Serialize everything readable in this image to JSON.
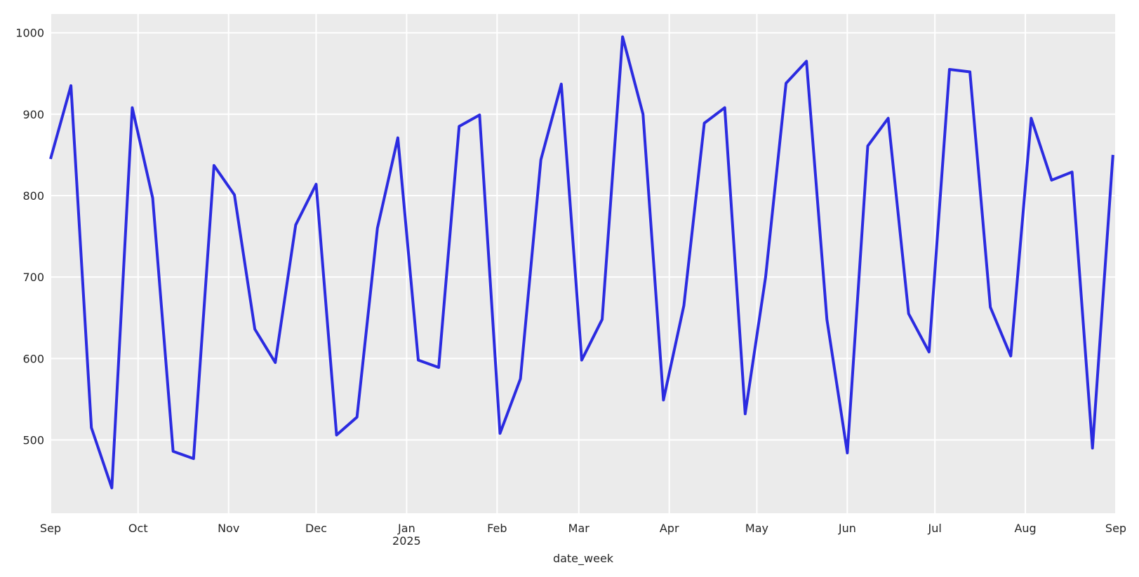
{
  "chart_data": {
    "type": "line",
    "xlabel": "date_week",
    "ylabel": "",
    "title": "",
    "ylim": [
      410,
      1023
    ],
    "xlim": [
      "2024-09-01",
      "2025-09-01"
    ],
    "grid": true,
    "background": "#ebebeb",
    "line_color": "#2b2be0",
    "y_ticks": [
      500,
      600,
      700,
      800,
      900,
      1000
    ],
    "x_ticks": [
      {
        "date": "2024-09-01",
        "label": "Sep",
        "sublabel": ""
      },
      {
        "date": "2024-10-01",
        "label": "Oct",
        "sublabel": ""
      },
      {
        "date": "2024-11-01",
        "label": "Nov",
        "sublabel": ""
      },
      {
        "date": "2024-12-01",
        "label": "Dec",
        "sublabel": ""
      },
      {
        "date": "2025-01-01",
        "label": "Jan",
        "sublabel": "2025"
      },
      {
        "date": "2025-02-01",
        "label": "Feb",
        "sublabel": ""
      },
      {
        "date": "2025-03-01",
        "label": "Mar",
        "sublabel": ""
      },
      {
        "date": "2025-04-01",
        "label": "Apr",
        "sublabel": ""
      },
      {
        "date": "2025-05-01",
        "label": "May",
        "sublabel": ""
      },
      {
        "date": "2025-06-01",
        "label": "Jun",
        "sublabel": ""
      },
      {
        "date": "2025-07-01",
        "label": "Jul",
        "sublabel": ""
      },
      {
        "date": "2025-08-01",
        "label": "Aug",
        "sublabel": ""
      },
      {
        "date": "2025-09-01",
        "label": "Sep",
        "sublabel": ""
      }
    ],
    "x": [
      "2024-09-01",
      "2024-09-08",
      "2024-09-15",
      "2024-09-22",
      "2024-09-29",
      "2024-10-06",
      "2024-10-13",
      "2024-10-20",
      "2024-10-27",
      "2024-11-03",
      "2024-11-10",
      "2024-11-17",
      "2024-11-24",
      "2024-12-01",
      "2024-12-08",
      "2024-12-15",
      "2024-12-22",
      "2024-12-29",
      "2025-01-05",
      "2025-01-12",
      "2025-01-19",
      "2025-01-26",
      "2025-02-02",
      "2025-02-09",
      "2025-02-16",
      "2025-02-23",
      "2025-03-02",
      "2025-03-09",
      "2025-03-16",
      "2025-03-23",
      "2025-03-30",
      "2025-04-06",
      "2025-04-13",
      "2025-04-20",
      "2025-04-27",
      "2025-05-04",
      "2025-05-11",
      "2025-05-18",
      "2025-05-25",
      "2025-06-01",
      "2025-06-08",
      "2025-06-15",
      "2025-06-22",
      "2025-06-29",
      "2025-07-06",
      "2025-07-13",
      "2025-07-20",
      "2025-07-27",
      "2025-08-03",
      "2025-08-10",
      "2025-08-17",
      "2025-08-24",
      "2025-08-31"
    ],
    "series": [
      {
        "values": [
          845,
          935,
          515,
          441,
          908,
          797,
          486,
          477,
          837,
          801,
          636,
          595,
          764,
          814,
          506,
          528,
          760,
          871,
          598,
          589,
          885,
          899,
          508,
          575,
          844,
          937,
          598,
          648,
          995,
          900,
          549,
          665,
          889,
          908,
          532,
          700,
          938,
          965,
          648,
          484,
          861,
          895,
          655,
          608,
          955,
          952,
          663,
          603,
          895,
          819,
          829,
          490,
          850
        ]
      }
    ]
  }
}
